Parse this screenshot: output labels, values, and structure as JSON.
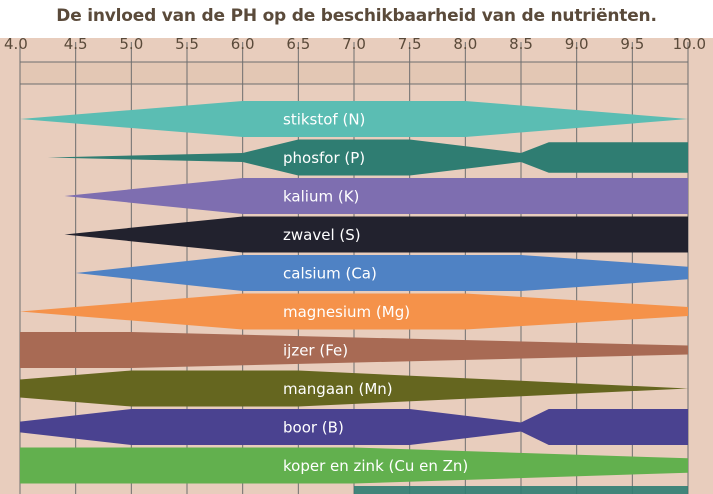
{
  "chart_data": {
    "type": "area",
    "title": "De invloed van de PH op de beschikbaarheid van de nutriënten.",
    "xlabel": "",
    "ylabel": "",
    "xlim": [
      4.0,
      10.0
    ],
    "x_ticks": [
      "4.0",
      "4.5",
      "5.0",
      "5.5",
      "6.0",
      "6.5",
      "7.0",
      "7.5",
      "8.0",
      "8.5",
      "9.0",
      "9.5",
      "10.0"
    ],
    "grid": true,
    "series": [
      {
        "name": "stikstof (N)",
        "color": "#5bbdb3",
        "x": [
          4.0,
          6.0,
          8.0,
          10.0
        ],
        "width": [
          0.0,
          1.0,
          1.0,
          0.0
        ]
      },
      {
        "name": "phosfor (P)",
        "color": "#2f7d72",
        "x": [
          4.25,
          6.0,
          6.5,
          7.5,
          8.5,
          8.75,
          10.0
        ],
        "width": [
          0.0,
          0.25,
          1.0,
          1.0,
          0.25,
          0.85,
          0.85
        ]
      },
      {
        "name": "kalium (K)",
        "color": "#7e6eb0",
        "x": [
          4.4,
          6.0,
          10.0
        ],
        "width": [
          0.0,
          1.0,
          1.0
        ]
      },
      {
        "name": "zwavel (S)",
        "color": "#22222e",
        "x": [
          4.4,
          6.0,
          10.0
        ],
        "width": [
          0.0,
          1.0,
          1.0
        ]
      },
      {
        "name": "calsium (Ca)",
        "color": "#4f82c4",
        "x": [
          4.5,
          6.0,
          8.5,
          10.0
        ],
        "width": [
          0.0,
          1.0,
          1.0,
          0.35
        ]
      },
      {
        "name": "magnesium (Mg)",
        "color": "#f5924a",
        "x": [
          4.0,
          6.0,
          8.0,
          10.0
        ],
        "width": [
          0.0,
          1.0,
          1.0,
          0.25
        ]
      },
      {
        "name": "ijzer (Fe)",
        "color": "#a86a54",
        "x": [
          4.0,
          5.0,
          10.0
        ],
        "width": [
          1.0,
          1.0,
          0.25
        ]
      },
      {
        "name": "mangaan (Mn)",
        "color": "#65661f",
        "x": [
          4.0,
          5.0,
          6.5,
          10.0
        ],
        "width": [
          0.5,
          1.0,
          1.0,
          0.0
        ]
      },
      {
        "name": "boor (B)",
        "color": "#4a4290",
        "x": [
          4.0,
          5.0,
          7.5,
          8.5,
          8.75,
          10.0
        ],
        "width": [
          0.3,
          1.0,
          1.0,
          0.25,
          1.0,
          1.0
        ]
      },
      {
        "name": "koper en zink (Cu en Zn)",
        "color": "#62b04e",
        "x": [
          4.0,
          7.0,
          10.0
        ],
        "width": [
          1.0,
          1.0,
          0.4
        ]
      }
    ]
  }
}
